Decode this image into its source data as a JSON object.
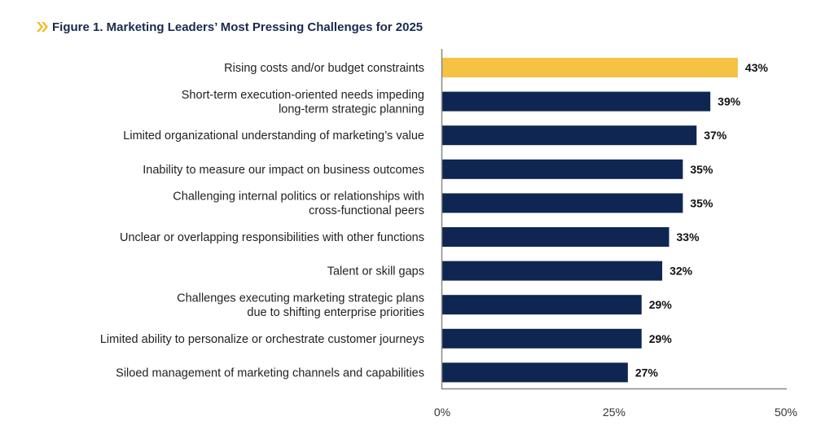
{
  "chart_data": {
    "type": "bar",
    "orientation": "horizontal",
    "title": "Figure 1. Marketing Leaders’ Most Pressing Challenges for 2025",
    "categories": [
      [
        "Rising costs and/or budget constraints"
      ],
      [
        "Short-term execution-oriented needs impeding",
        "long-term strategic planning"
      ],
      [
        "Limited organizational understanding of marketing’s value"
      ],
      [
        "Inability to measure our impact on business outcomes"
      ],
      [
        "Challenging internal politics or relationships with",
        "cross-functional peers"
      ],
      [
        "Unclear or overlapping responsibilities with other functions"
      ],
      [
        "Talent or skill gaps"
      ],
      [
        "Challenges executing marketing strategic plans",
        "due to shifting enterprise priorities"
      ],
      [
        "Limited ability to personalize or orchestrate customer journeys"
      ],
      [
        "Siloed management of marketing channels and capabilities"
      ]
    ],
    "values": [
      43,
      39,
      37,
      35,
      35,
      33,
      32,
      29,
      29,
      27
    ],
    "data_labels": [
      "43%",
      "39%",
      "37%",
      "35%",
      "35%",
      "33%",
      "32%",
      "29%",
      "29%",
      "27%"
    ],
    "xlim": [
      0,
      50
    ],
    "x_ticks": [
      "0%",
      "25%",
      "50%"
    ],
    "x_tick_values": [
      0,
      25,
      50
    ],
    "grid": false,
    "colors": {
      "highlight": "#f5c244",
      "bar": "#0e2651",
      "title": "#1a2a4f",
      "title_icon": "#f5b820"
    }
  }
}
